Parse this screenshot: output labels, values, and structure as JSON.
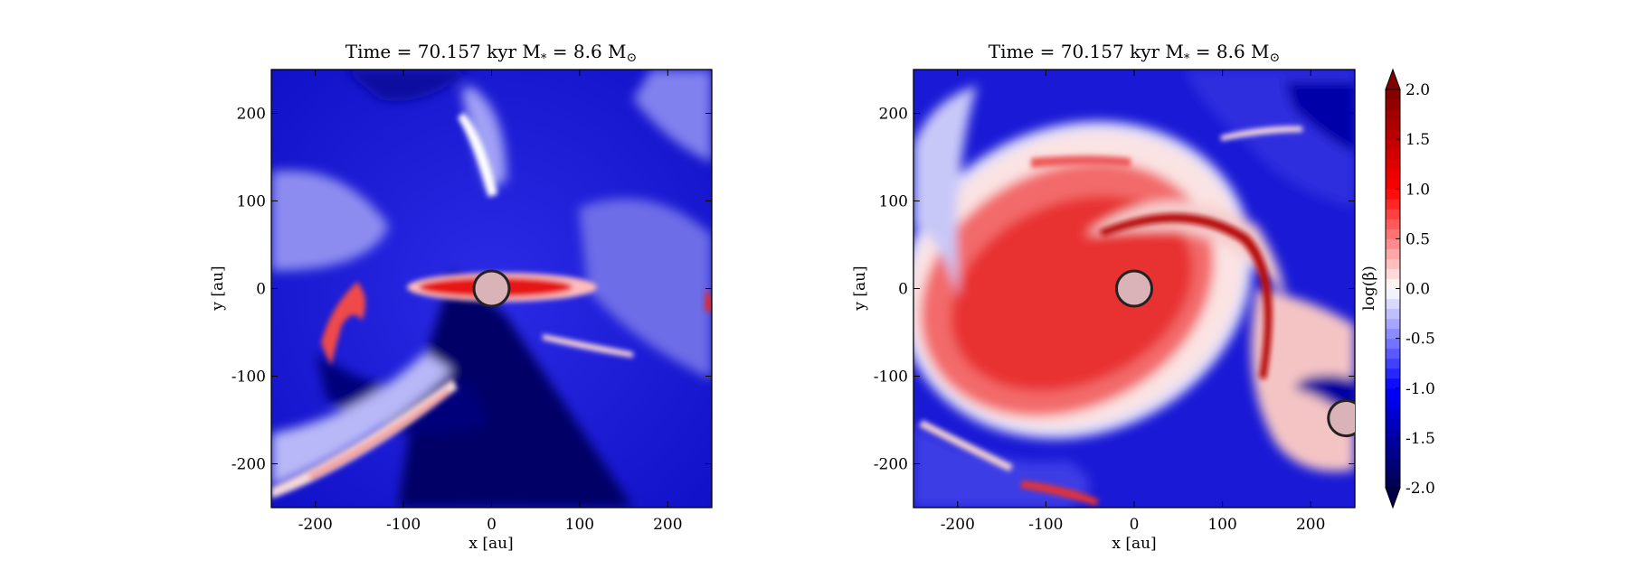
{
  "figure": {
    "panels": [
      {
        "title": "Time = 70.157 kyr    M",
        "title_sub": "*",
        "title_mid": " = 8.6 M",
        "title_sun": "⊙",
        "xlabel": "x [au]",
        "ylabel": "y [au]"
      },
      {
        "title": "Time = 70.157 kyr    M",
        "title_sub": "*",
        "title_mid": " = 8.6 M",
        "title_sun": "⊙",
        "xlabel": "x [au]",
        "ylabel": "y [au]"
      }
    ],
    "colorbar": {
      "label": "log(β)",
      "ticks": [
        "2.0",
        "1.5",
        "1.0",
        "0.5",
        "0.0",
        "-0.5",
        "-1.0",
        "-1.5",
        "-2.0"
      ],
      "colormap": "seismic",
      "colors": [
        "#00004c",
        "#0000ff",
        "#ffffff",
        "#ff0000",
        "#800000"
      ]
    }
  },
  "chart_data": [
    {
      "type": "heatmap",
      "title": "Time = 70.157 kyr    M* = 8.6 M⊙",
      "xlabel": "x [au]",
      "ylabel": "y [au]",
      "xlim": [
        -250,
        250
      ],
      "ylim": [
        -250,
        250
      ],
      "xticks": [
        -200,
        -100,
        0,
        100,
        200
      ],
      "yticks": [
        -200,
        -100,
        0,
        100,
        200
      ],
      "variable": "log(β)",
      "vmin": -2.0,
      "vmax": 2.0,
      "sinks": [
        {
          "x": 0,
          "y": 0,
          "r": 20
        }
      ]
    },
    {
      "type": "heatmap",
      "title": "Time = 70.157 kyr    M* = 8.6 M⊙",
      "xlabel": "x [au]",
      "ylabel": "y [au]",
      "xlim": [
        -250,
        250
      ],
      "ylim": [
        -250,
        250
      ],
      "xticks": [
        -200,
        -100,
        0,
        100,
        200
      ],
      "yticks": [
        -200,
        -100,
        0,
        100,
        200
      ],
      "variable": "log(β)",
      "vmin": -2.0,
      "vmax": 2.0,
      "sinks": [
        {
          "x": 0,
          "y": 0,
          "r": 20
        },
        {
          "x": 240,
          "y": -148,
          "r": 20
        }
      ]
    }
  ]
}
